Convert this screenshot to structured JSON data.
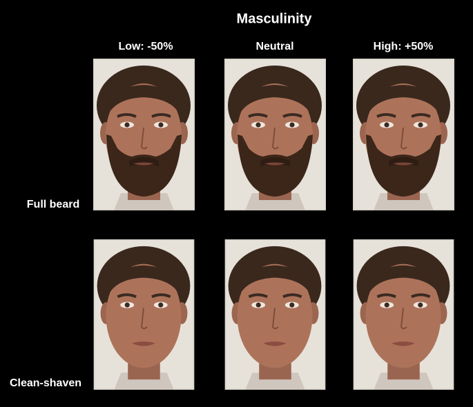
{
  "header": {
    "title": "Masculinity",
    "columns": [
      "Low: -50%",
      "Neutral",
      "High: +50%"
    ]
  },
  "rows": [
    "Full beard",
    "Clean-shaven"
  ]
}
